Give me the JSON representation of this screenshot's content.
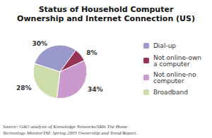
{
  "chart_data": {
    "type": "pie",
    "title": "Status of Household Computer\nOwnership and Internet Connection (US)",
    "categories": [
      "Dial-up",
      "Not online-own\na computer",
      "Not online-no\ncomputer",
      "Broadband"
    ],
    "values": [
      30,
      8,
      34,
      28
    ],
    "value_labels": [
      "30%",
      "8%",
      "34%",
      "28%"
    ],
    "colors": [
      "#9999cc",
      "#993355",
      "#cc99cc",
      "#ccddaa"
    ],
    "data_labels": true,
    "legend": "right",
    "annotations": [
      "Source: GAO analysis of Knowledge Networks/SRIs The Home\nTechnology MonitorTM: Spring 2005 Ownership and Trend Report."
    ]
  }
}
